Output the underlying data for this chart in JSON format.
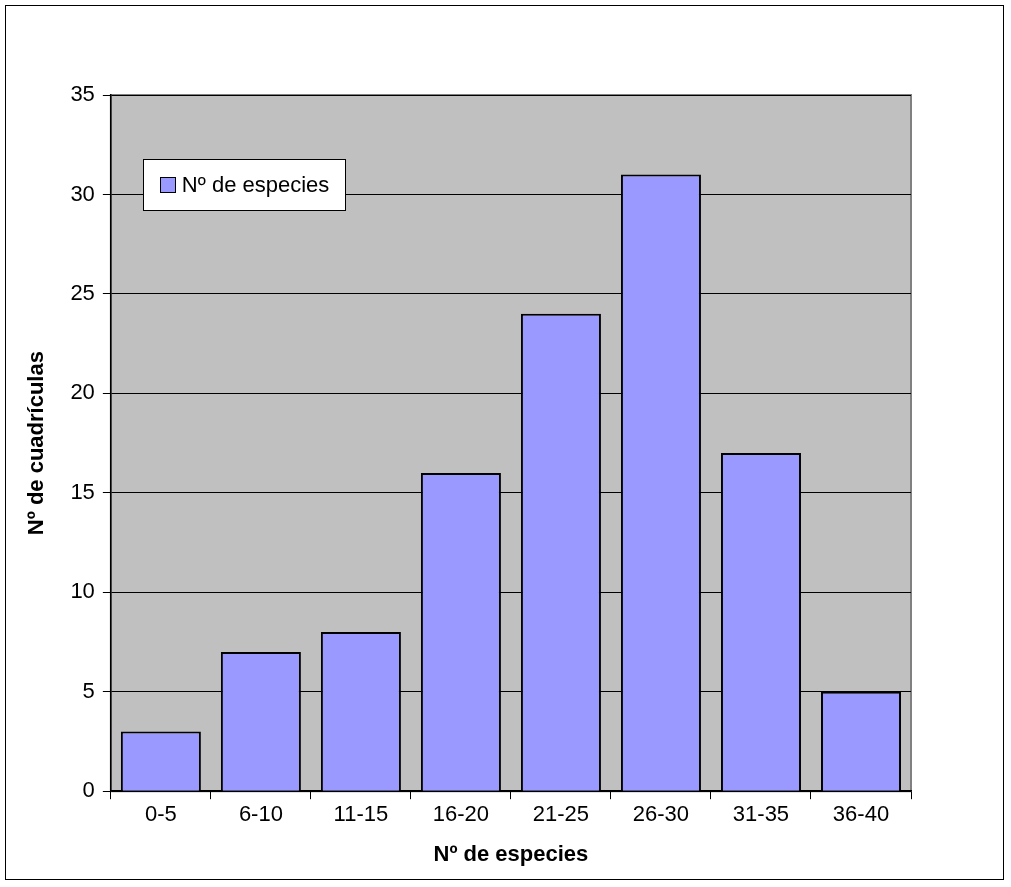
{
  "chart_data": {
    "type": "bar",
    "xlabel": "Nº de especies",
    "ylabel": "Nº de cuadrículas",
    "categories": [
      "0-5",
      "6-10",
      "11-15",
      "16-20",
      "21-25",
      "26-30",
      "31-35",
      "36-40"
    ],
    "series": [
      {
        "name": "Nº de especies",
        "color": "#9999ff",
        "values": [
          3,
          7,
          8,
          16,
          24,
          31,
          17,
          5
        ]
      }
    ],
    "ylim": [
      0,
      35
    ],
    "yticks": [
      0,
      5,
      10,
      15,
      20,
      25,
      30,
      35
    ],
    "grid": "y",
    "legend": "top left"
  }
}
